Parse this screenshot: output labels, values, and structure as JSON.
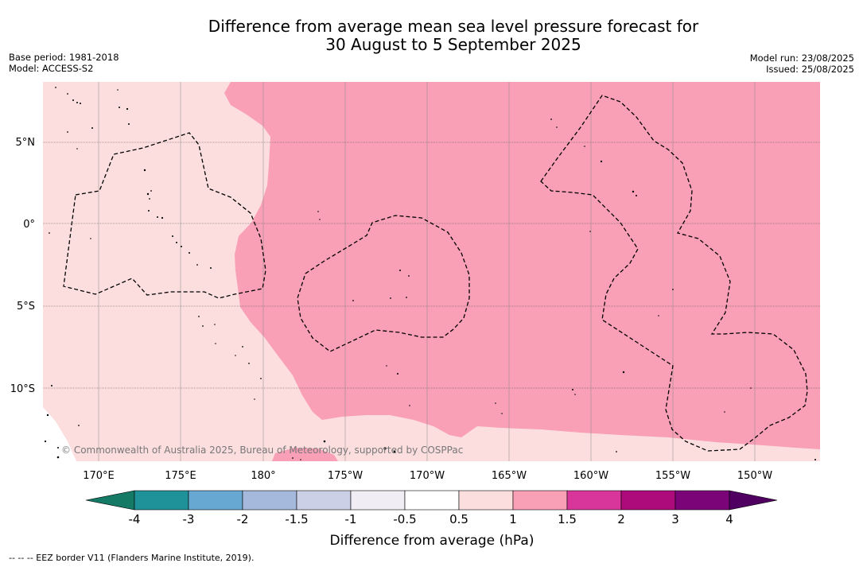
{
  "title": {
    "line1": "Difference from average mean sea level pressure forecast for",
    "line2": "30 August to 5 September 2025"
  },
  "meta_left": {
    "base_period": "Base period: 1981-2018",
    "model": "Model: ACCESS-S2"
  },
  "meta_right": {
    "model_run": "Model run: 23/08/2025",
    "issued": "Issued: 25/08/2025"
  },
  "map": {
    "lat_labels": [
      "5°N",
      "0°",
      "5°S",
      "10°S"
    ],
    "lon_labels": [
      "170°E",
      "175°E",
      "180°",
      "175°W",
      "170°W",
      "165°W",
      "160°W",
      "155°W",
      "150°W"
    ],
    "credit": "© Commonwealth of Australia 2025, Bureau of Meteorology, supported by COSPPac",
    "colors": {
      "band_0_5_to_1": "#fcdede",
      "band_1_to_1_5": "#f99fb6",
      "coast": "#000000",
      "eez": "#000000"
    }
  },
  "colorbar": {
    "ticks": [
      "-4",
      "-3",
      "-2",
      "-1.5",
      "-1",
      "-0.5",
      "0.5",
      "1",
      "1.5",
      "2",
      "3",
      "4"
    ],
    "colors": [
      "#147a65",
      "#1f9299",
      "#66a8d1",
      "#a5b9dc",
      "#ccd0e6",
      "#f0eef4",
      "#ffffff",
      "#fcdede",
      "#f99fb6",
      "#d8369a",
      "#ad0a7c",
      "#7a0478",
      "#4f0061"
    ],
    "label": "Difference from average (hPa)"
  },
  "footnote": "--  --  -- EEZ border V11 (Flanders Marine Institute, 2019)."
}
